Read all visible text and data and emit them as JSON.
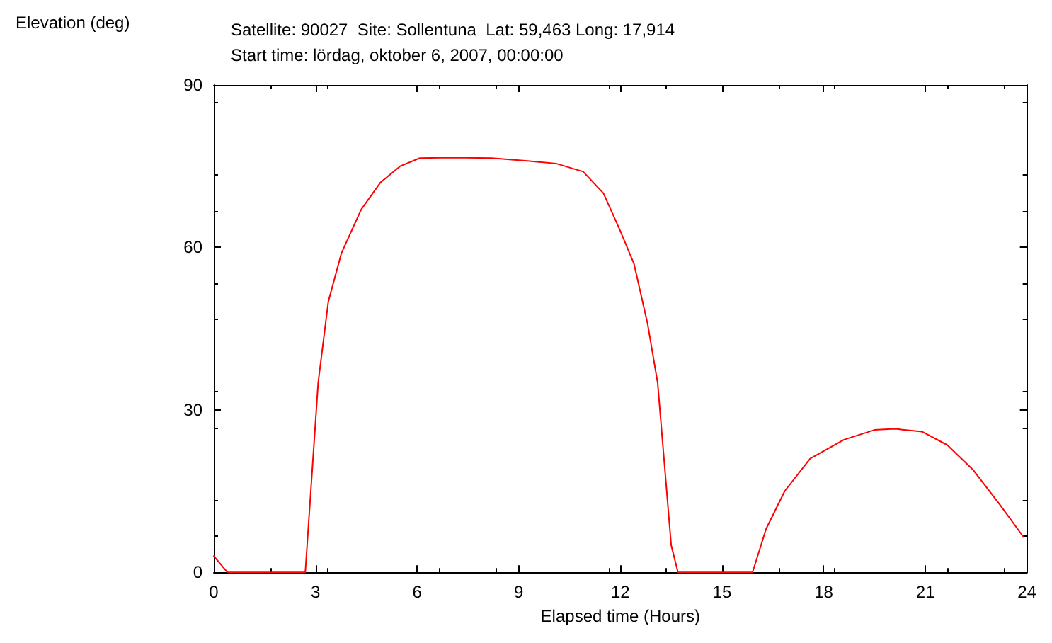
{
  "chart_data": {
    "type": "line",
    "title": "Satellite: 90027  Site: Sollentuna  Lat: 59,463 Long: 17,914",
    "subtitle": "Start time: lördag, oktober 6, 2007, 00:00:00",
    "xlabel": "Elapsed time (Hours)",
    "ylabel": "Elevation (deg)",
    "x": [
      0,
      0.2,
      0.4,
      1.5,
      2.7,
      3.08,
      3.38,
      3.77,
      4.35,
      4.92,
      5.5,
      6.08,
      7,
      8.2,
      9.2,
      10.1,
      10.9,
      11.5,
      12.0,
      12.4,
      12.8,
      13.1,
      13.3,
      13.5,
      13.7,
      15,
      15.9,
      16.3,
      16.85,
      17.6,
      18.6,
      19.5,
      20.1,
      20.9,
      21.65,
      22.4,
      23.2,
      23.9
    ],
    "series": [
      {
        "color": "#ff0000",
        "values": [
          3,
          1.5,
          0,
          0,
          0,
          35,
          50,
          59,
          67,
          72,
          75,
          76.5,
          76.6,
          76.5,
          76,
          75.5,
          74,
          70,
          63,
          57,
          46,
          35,
          20,
          5,
          0,
          0,
          0,
          8,
          15,
          21,
          24.5,
          26.3,
          26.5,
          26,
          23.5,
          19,
          12.5,
          6.5
        ]
      }
    ],
    "xlim": [
      0,
      24
    ],
    "xticks": [
      0,
      3,
      6,
      9,
      12,
      15,
      18,
      21,
      24
    ],
    "ylim": [
      0,
      90
    ],
    "yticks": [
      0,
      30,
      60,
      90
    ],
    "grid": false,
    "marker": "none",
    "line_style": "solid"
  }
}
